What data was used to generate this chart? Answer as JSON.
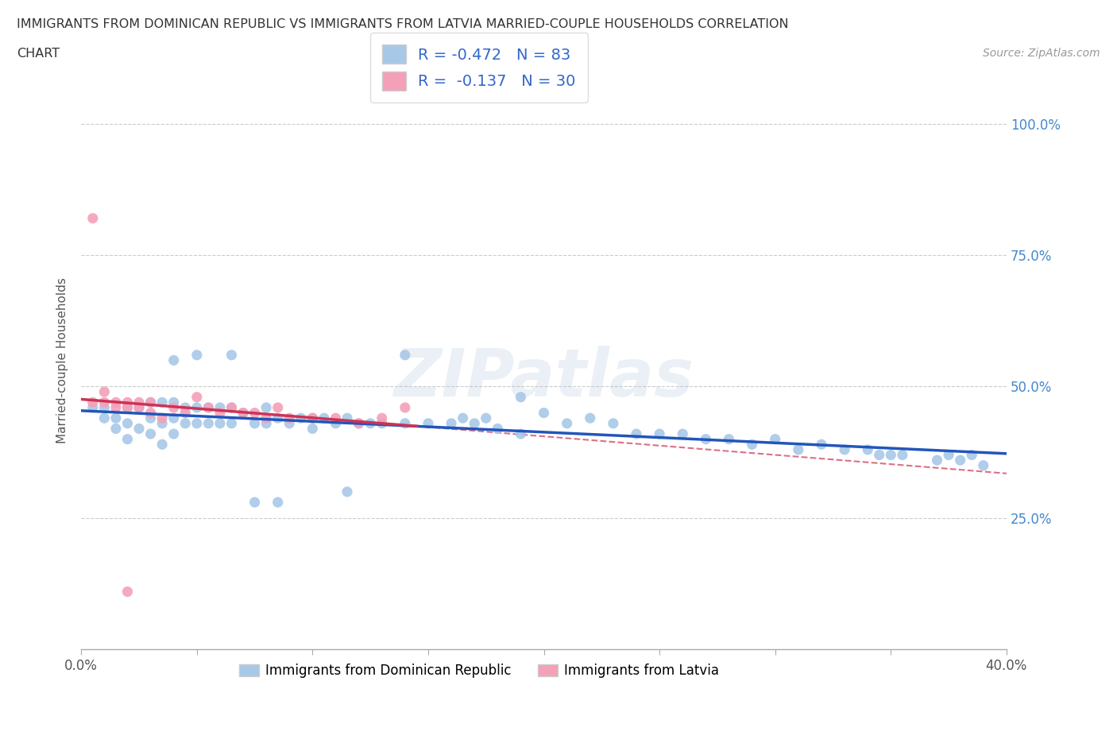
{
  "title_line1": "IMMIGRANTS FROM DOMINICAN REPUBLIC VS IMMIGRANTS FROM LATVIA MARRIED-COUPLE HOUSEHOLDS CORRELATION",
  "title_line2": "CHART",
  "source": "Source: ZipAtlas.com",
  "ylabel": "Married-couple Households",
  "yticks_labels": [
    "100.0%",
    "75.0%",
    "50.0%",
    "25.0%"
  ],
  "ytick_vals": [
    1.0,
    0.75,
    0.5,
    0.25
  ],
  "xlim": [
    0.0,
    0.4
  ],
  "ylim": [
    0.0,
    1.1
  ],
  "r_blue": -0.472,
  "n_blue": 83,
  "r_pink": -0.137,
  "n_pink": 30,
  "color_blue": "#a8c8e8",
  "color_pink": "#f4a0b8",
  "trendline_blue": "#2255bb",
  "trendline_pink": "#cc3355",
  "trendline_dashed_color": "#bbbbbb",
  "watermark": "ZIPatlas",
  "legend_label_color": "#3366cc",
  "right_tick_color": "#4488cc",
  "blue_x": [
    0.005,
    0.01,
    0.01,
    0.015,
    0.015,
    0.02,
    0.02,
    0.02,
    0.025,
    0.025,
    0.03,
    0.03,
    0.03,
    0.035,
    0.035,
    0.035,
    0.04,
    0.04,
    0.04,
    0.045,
    0.045,
    0.05,
    0.05,
    0.055,
    0.055,
    0.06,
    0.06,
    0.065,
    0.065,
    0.07,
    0.075,
    0.08,
    0.08,
    0.085,
    0.09,
    0.095,
    0.1,
    0.1,
    0.105,
    0.11,
    0.115,
    0.12,
    0.125,
    0.13,
    0.14,
    0.15,
    0.16,
    0.165,
    0.17,
    0.175,
    0.18,
    0.19,
    0.2,
    0.21,
    0.22,
    0.23,
    0.24,
    0.25,
    0.26,
    0.27,
    0.28,
    0.29,
    0.3,
    0.31,
    0.32,
    0.33,
    0.34,
    0.345,
    0.35,
    0.355,
    0.37,
    0.375,
    0.38,
    0.385,
    0.39,
    0.04,
    0.05,
    0.065,
    0.075,
    0.085,
    0.115,
    0.14,
    0.19
  ],
  "blue_y": [
    0.46,
    0.44,
    0.46,
    0.44,
    0.42,
    0.46,
    0.43,
    0.4,
    0.46,
    0.42,
    0.47,
    0.44,
    0.41,
    0.47,
    0.43,
    0.39,
    0.47,
    0.44,
    0.41,
    0.46,
    0.43,
    0.46,
    0.43,
    0.46,
    0.43,
    0.46,
    0.43,
    0.46,
    0.43,
    0.45,
    0.43,
    0.46,
    0.43,
    0.44,
    0.43,
    0.44,
    0.44,
    0.42,
    0.44,
    0.43,
    0.44,
    0.43,
    0.43,
    0.43,
    0.43,
    0.43,
    0.43,
    0.44,
    0.43,
    0.44,
    0.42,
    0.41,
    0.45,
    0.43,
    0.44,
    0.43,
    0.41,
    0.41,
    0.41,
    0.4,
    0.4,
    0.39,
    0.4,
    0.38,
    0.39,
    0.38,
    0.38,
    0.37,
    0.37,
    0.37,
    0.36,
    0.37,
    0.36,
    0.37,
    0.35,
    0.55,
    0.56,
    0.56,
    0.28,
    0.28,
    0.3,
    0.56,
    0.48
  ],
  "pink_x": [
    0.005,
    0.01,
    0.01,
    0.015,
    0.015,
    0.02,
    0.02,
    0.025,
    0.025,
    0.03,
    0.03,
    0.035,
    0.04,
    0.045,
    0.05,
    0.055,
    0.06,
    0.065,
    0.07,
    0.075,
    0.08,
    0.085,
    0.09,
    0.1,
    0.11,
    0.12,
    0.13,
    0.14,
    0.005,
    0.02
  ],
  "pink_y": [
    0.47,
    0.47,
    0.49,
    0.47,
    0.46,
    0.47,
    0.46,
    0.47,
    0.46,
    0.47,
    0.45,
    0.44,
    0.46,
    0.45,
    0.48,
    0.46,
    0.45,
    0.46,
    0.45,
    0.45,
    0.44,
    0.46,
    0.44,
    0.44,
    0.44,
    0.43,
    0.44,
    0.46,
    0.82,
    0.11
  ]
}
